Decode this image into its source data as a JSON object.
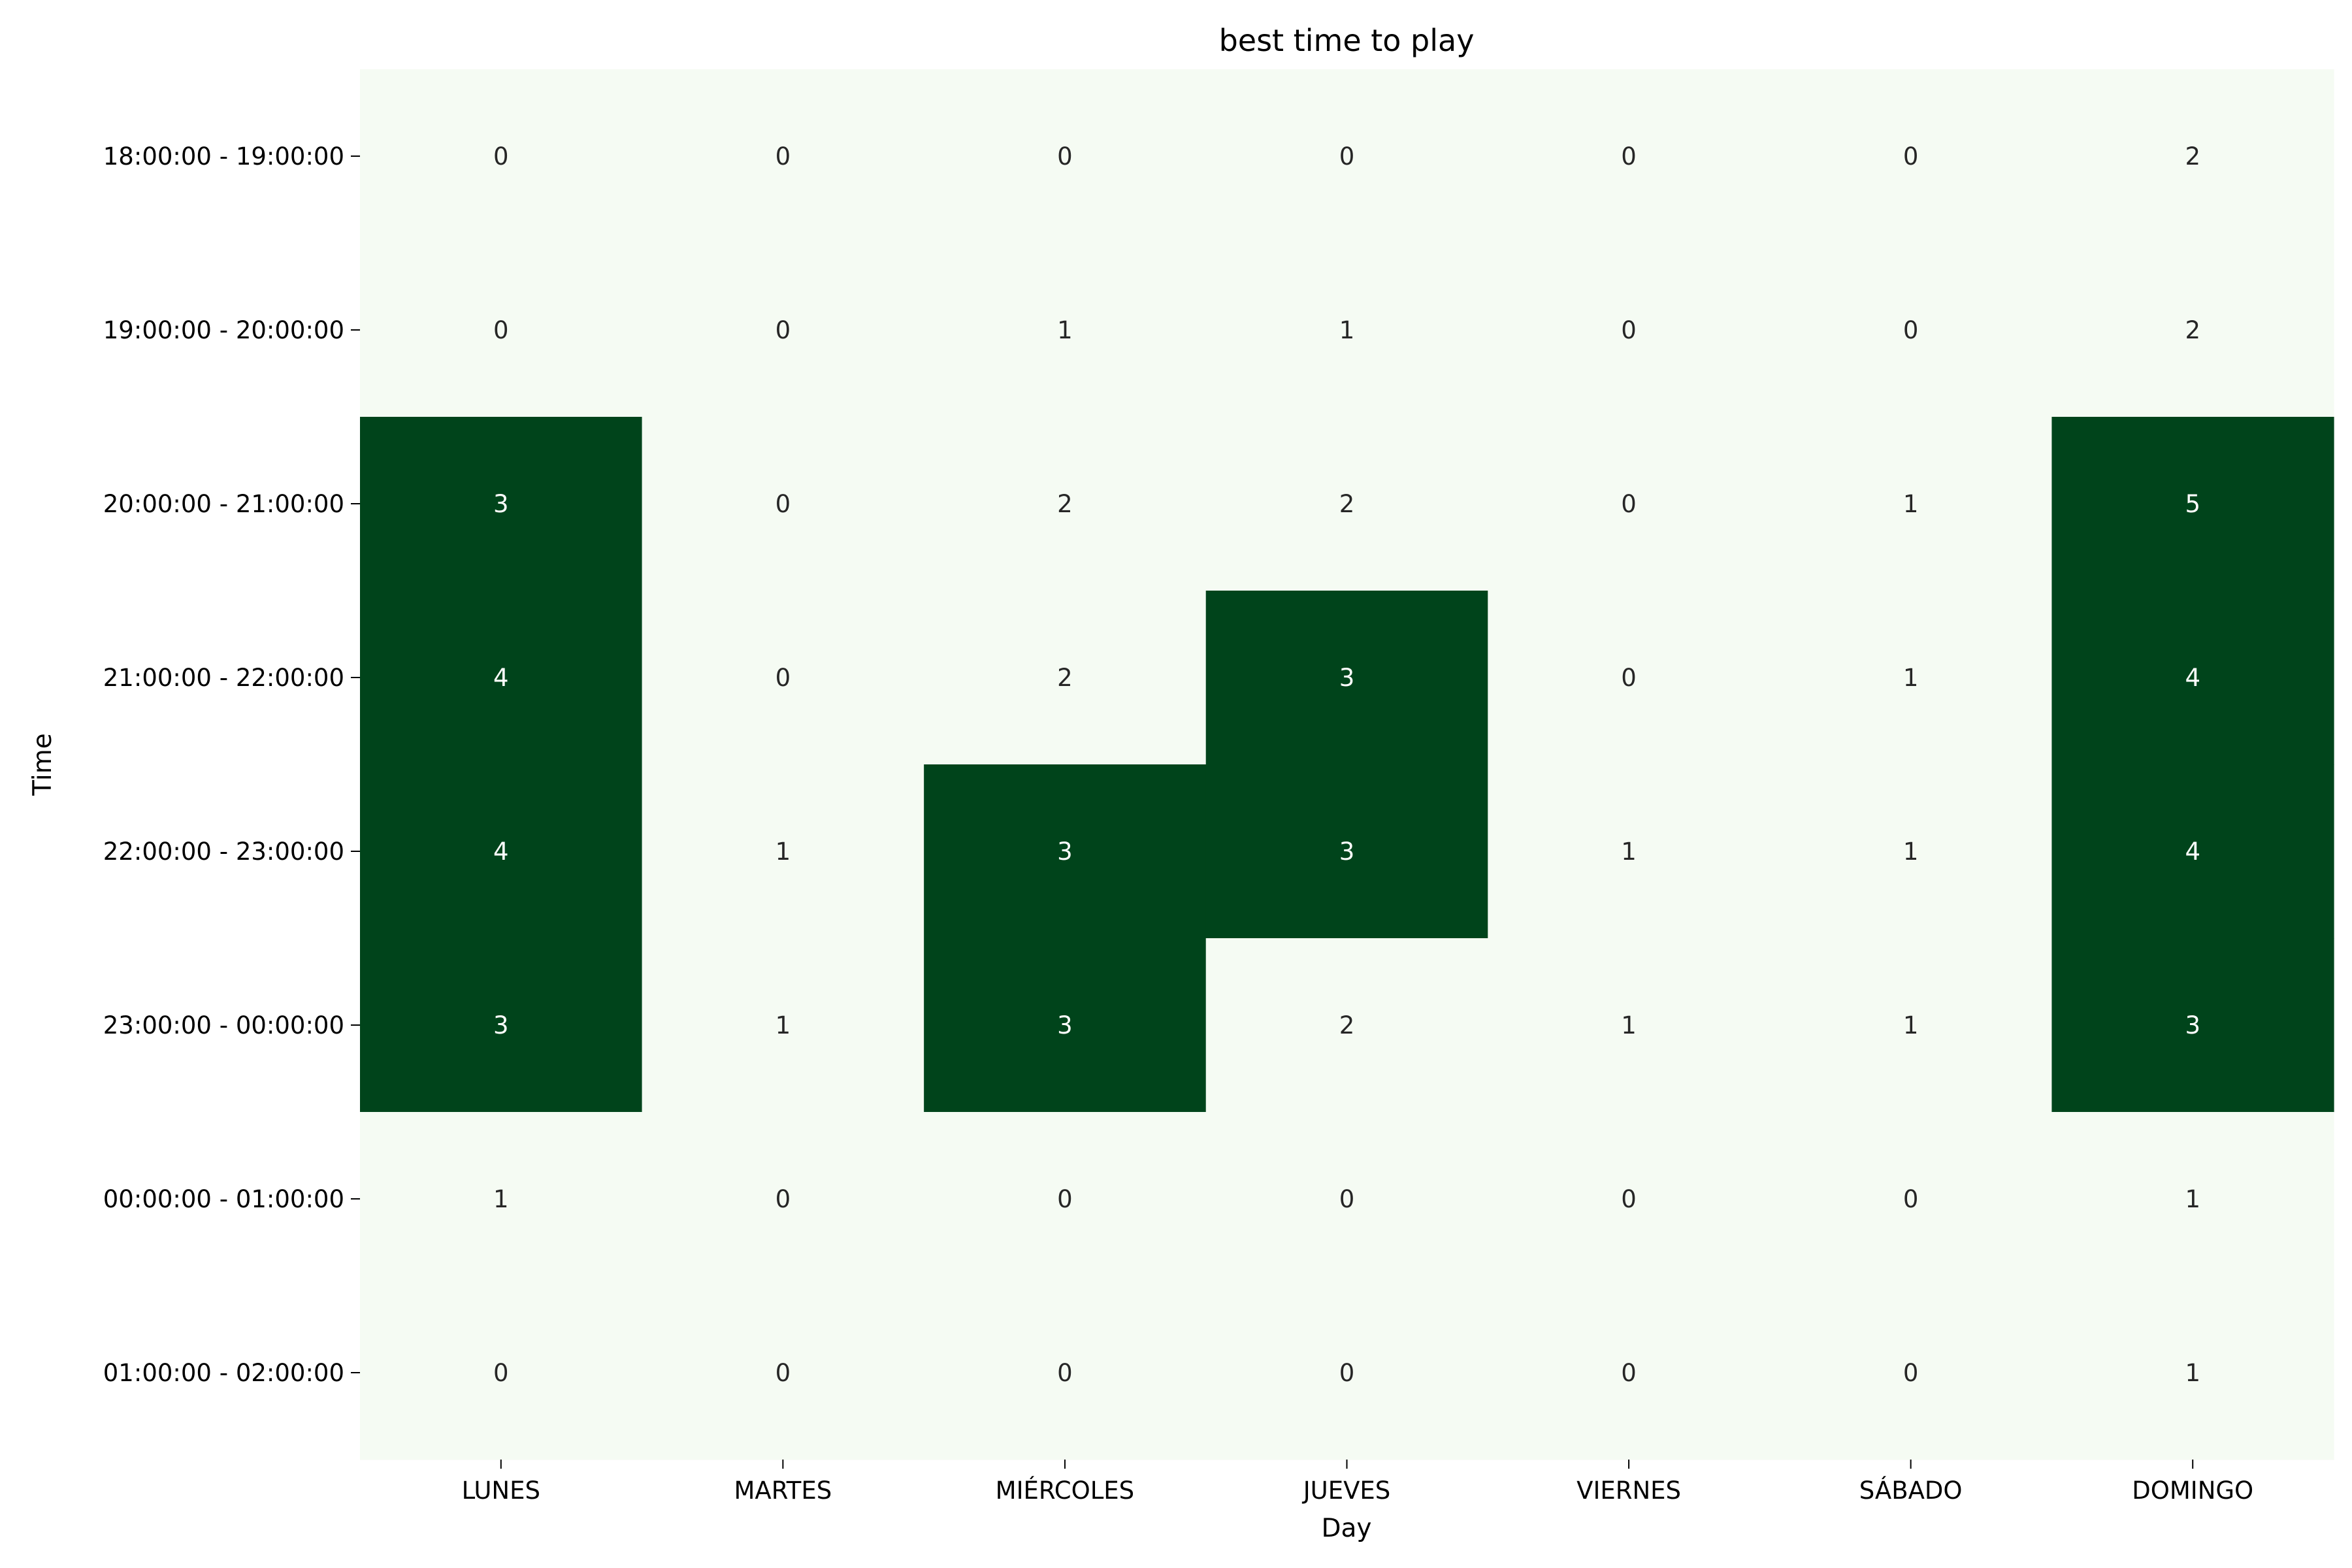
{
  "chart_data": {
    "type": "heatmap",
    "title": "best time to play",
    "xlabel": "Day",
    "ylabel": "Time",
    "x_categories": [
      "LUNES",
      "MARTES",
      "MIÉRCOLES",
      "JUEVES",
      "VIERNES",
      "SÁBADO",
      "DOMINGO"
    ],
    "y_categories": [
      "18:00:00 - 19:00:00",
      "19:00:00 - 20:00:00",
      "20:00:00 - 21:00:00",
      "21:00:00 - 22:00:00",
      "22:00:00 - 23:00:00",
      "23:00:00 - 00:00:00",
      "00:00:00 - 01:00:00",
      "01:00:00 - 02:00:00"
    ],
    "values": [
      [
        0,
        0,
        0,
        0,
        0,
        0,
        2
      ],
      [
        0,
        0,
        1,
        1,
        0,
        0,
        2
      ],
      [
        3,
        0,
        2,
        2,
        0,
        1,
        5
      ],
      [
        4,
        0,
        2,
        3,
        0,
        1,
        4
      ],
      [
        4,
        1,
        3,
        3,
        1,
        1,
        4
      ],
      [
        3,
        1,
        3,
        2,
        1,
        1,
        3
      ],
      [
        1,
        0,
        0,
        0,
        0,
        0,
        1
      ],
      [
        0,
        0,
        0,
        0,
        0,
        0,
        1
      ]
    ],
    "threshold": 3,
    "colors": {
      "low": "#f5fbf3",
      "high": "#00441b",
      "text_on_low": "#262626",
      "text_on_high": "#ffffff"
    },
    "annotated": true,
    "colorbar": false,
    "grid": false
  }
}
